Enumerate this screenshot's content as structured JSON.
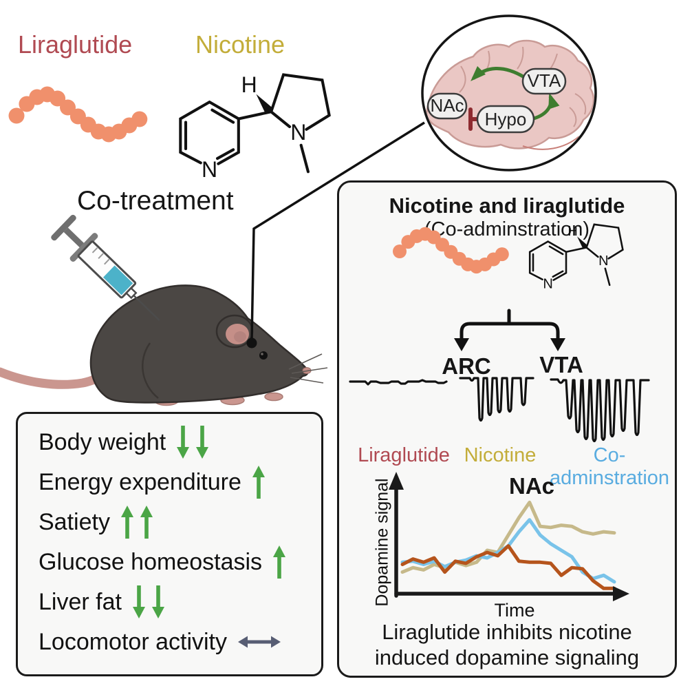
{
  "figure": {
    "liraglutide_label": "Liraglutide",
    "nicotine_label": "Nicotine",
    "co_treatment_label": "Co-treatment"
  },
  "molecule": {
    "h_label": "H",
    "ring_n_label": "N",
    "amine_n_label": "N"
  },
  "brain_inset": {
    "nac_label": "NAc",
    "hypo_label": "Hypo",
    "vta_label": "VTA",
    "relations": [
      {
        "from": "VTA",
        "to": "NAc",
        "type": "activation"
      },
      {
        "from": "Hypo",
        "to": "VTA",
        "type": "activation"
      },
      {
        "from": "Hypo",
        "to": "NAc",
        "type": "inhibition"
      }
    ]
  },
  "effects_panel": {
    "items": [
      {
        "label": "Body weight",
        "arrows": [
          "down",
          "down"
        ],
        "arrow_color": "#4ba546"
      },
      {
        "label": "Energy expenditure",
        "arrows": [
          "up"
        ],
        "arrow_color": "#4ba546"
      },
      {
        "label": "Satiety",
        "arrows": [
          "up",
          "up"
        ],
        "arrow_color": "#4ba546"
      },
      {
        "label": "Glucose homeostasis",
        "arrows": [
          "up"
        ],
        "arrow_color": "#4ba546"
      },
      {
        "label": "Liver fat",
        "arrows": [
          "down",
          "down"
        ],
        "arrow_color": "#4ba546"
      },
      {
        "label": "Locomotor activity",
        "arrows": [
          "both"
        ],
        "arrow_color": "#575d73"
      }
    ]
  },
  "right_panel": {
    "title": "Nicotine and liraglutide",
    "subtitle": "(Co-adminstration)",
    "arc_label": "ARC",
    "vta_label": "VTA",
    "condition_labels": [
      {
        "text": "Liraglutide",
        "color": "#b04a52",
        "trace_spikes": 0
      },
      {
        "text": "Nicotine",
        "color": "#c3ad3a",
        "trace_spikes": 5
      },
      {
        "text": "Co-adminstration",
        "color": "#59ace0",
        "trace_spikes": 8
      }
    ],
    "caption_line1": "Liraglutide inhibits nicotine",
    "caption_line2": "induced dopamine signaling"
  },
  "chart_data": {
    "type": "line",
    "title": "NAc",
    "xlabel": "Time",
    "ylabel": "Dopamine signal",
    "x_range": [
      0,
      20
    ],
    "ylim": [
      0,
      1
    ],
    "grid": false,
    "axes_arrows": true,
    "legend_position": "labels above chart",
    "series": [
      {
        "name": "Nicotine",
        "color": "#c6b98a",
        "values": [
          0.18,
          0.22,
          0.2,
          0.25,
          0.22,
          0.27,
          0.24,
          0.27,
          0.38,
          0.36,
          0.52,
          0.68,
          0.82,
          0.6,
          0.59,
          0.61,
          0.6,
          0.55,
          0.53,
          0.55,
          0.54
        ]
      },
      {
        "name": "Co-adminstration",
        "color": "#79c3e9",
        "values": [
          0.27,
          0.28,
          0.25,
          0.28,
          0.23,
          0.27,
          0.29,
          0.33,
          0.31,
          0.36,
          0.42,
          0.55,
          0.66,
          0.52,
          0.44,
          0.38,
          0.32,
          0.18,
          0.12,
          0.15,
          0.09
        ]
      },
      {
        "name": "Liraglutide",
        "color": "#b5541c",
        "values": [
          0.25,
          0.3,
          0.27,
          0.31,
          0.18,
          0.28,
          0.26,
          0.32,
          0.36,
          0.33,
          0.42,
          0.28,
          0.27,
          0.27,
          0.26,
          0.15,
          0.22,
          0.21,
          0.1,
          0.03,
          0.03
        ]
      }
    ]
  },
  "colors": {
    "liraglutide": "#b04a52",
    "nicotine": "#c3ad3a",
    "co_administration": "#59ace0",
    "peptide_bead": "#f0906c",
    "effect_arrow_green": "#4ba546",
    "neutral_arrow": "#575d73",
    "activation_arrow": "#3e7d2f",
    "inhibition_bar": "#8e2b30",
    "brain_fill": "#eac7c4",
    "mouse_body": "#4b4744",
    "tail_pink": "#ca968f",
    "syringe_liquid": "#4cb2c9",
    "panel_background": "#f8f8f7",
    "outline": "#1a1a1a"
  }
}
